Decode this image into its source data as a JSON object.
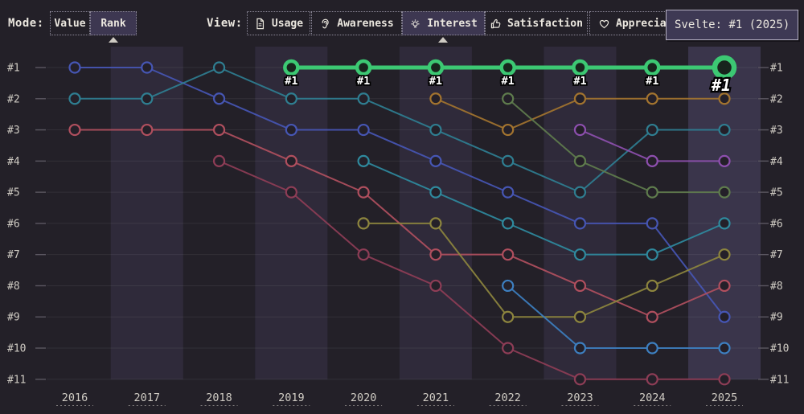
{
  "toolbar": {
    "mode_label": "Mode:",
    "mode_buttons": [
      {
        "label": "Value",
        "selected": false
      },
      {
        "label": "Rank",
        "selected": true
      }
    ],
    "view_label": "View:",
    "view_buttons": [
      {
        "label": "Usage",
        "icon": "document-icon",
        "selected": false
      },
      {
        "label": "Awareness",
        "icon": "ear-icon",
        "selected": false
      },
      {
        "label": "Interest",
        "icon": "lightbulb-icon",
        "selected": true
      },
      {
        "label": "Satisfaction",
        "icon": "thumbs-up-icon",
        "selected": false
      },
      {
        "label": "Appreciation",
        "icon": "heart-icon",
        "selected": false
      }
    ]
  },
  "tooltip": {
    "text": "Svelte: #1 (2025)"
  },
  "colors": {
    "background": "#232028",
    "band": "rgba(104,95,150,0.17)",
    "band_hover": "rgba(118,108,168,0.28)",
    "gridline": "rgba(255,255,255,0.07)",
    "tick": "#5b5761",
    "axis_text": "#cfcbc3",
    "highlight": "#3cc873"
  },
  "chart_data": {
    "type": "line",
    "subtype": "bump-rank",
    "x": [
      2016,
      2017,
      2018,
      2019,
      2020,
      2021,
      2022,
      2023,
      2024,
      2025
    ],
    "y_ticks": [
      "#1",
      "#2",
      "#3",
      "#4",
      "#5",
      "#6",
      "#7",
      "#8",
      "#9",
      "#10",
      "#11"
    ],
    "ylim": [
      1,
      11
    ],
    "grid": true,
    "hover_year": 2025,
    "point_label": "#1",
    "series": [
      {
        "id": "indigo",
        "color": "#4656b4",
        "highlight": false,
        "ranks": [
          1,
          1,
          2,
          3,
          3,
          4,
          5,
          6,
          6,
          9
        ]
      },
      {
        "id": "teal",
        "color": "#2f7e91",
        "highlight": false,
        "ranks": [
          2,
          2,
          1,
          2,
          2,
          3,
          4,
          5,
          3,
          3
        ]
      },
      {
        "id": "rose",
        "color": "#b04f5e",
        "highlight": false,
        "ranks": [
          3,
          3,
          3,
          4,
          5,
          7,
          7,
          8,
          9,
          8
        ]
      },
      {
        "id": "maroon",
        "color": "#8e3d56",
        "highlight": false,
        "ranks": [
          null,
          null,
          4,
          5,
          7,
          8,
          10,
          11,
          11,
          11
        ]
      },
      {
        "id": "cyan",
        "color": "#2f8a9e",
        "highlight": false,
        "ranks": [
          null,
          null,
          null,
          null,
          4,
          5,
          6,
          7,
          7,
          6
        ]
      },
      {
        "id": "olive",
        "color": "#8d853e",
        "highlight": false,
        "ranks": [
          null,
          null,
          null,
          null,
          6,
          6,
          9,
          9,
          8,
          7
        ]
      },
      {
        "id": "amber",
        "color": "#a3742f",
        "highlight": false,
        "ranks": [
          null,
          null,
          null,
          null,
          null,
          2,
          3,
          2,
          2,
          2
        ]
      },
      {
        "id": "sage",
        "color": "#5f7c4d",
        "highlight": false,
        "ranks": [
          null,
          null,
          null,
          null,
          null,
          null,
          2,
          4,
          5,
          5
        ]
      },
      {
        "id": "steel-blue",
        "color": "#3d7fc0",
        "highlight": false,
        "ranks": [
          null,
          null,
          null,
          null,
          null,
          null,
          8,
          10,
          10,
          10
        ]
      },
      {
        "id": "purple",
        "color": "#8d4fae",
        "highlight": false,
        "ranks": [
          null,
          null,
          null,
          null,
          null,
          null,
          null,
          3,
          4,
          4
        ]
      },
      {
        "id": "svelte",
        "name": "Svelte",
        "color": "#3cc873",
        "highlight": true,
        "ranks": [
          null,
          null,
          null,
          1,
          1,
          1,
          1,
          1,
          1,
          1
        ]
      }
    ]
  }
}
